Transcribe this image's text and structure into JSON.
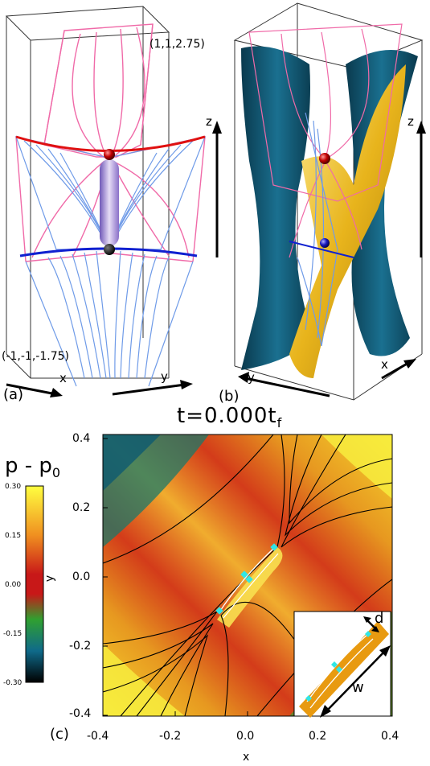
{
  "panel_a": {
    "label": "(a)",
    "corner_upper": "(1,1,2.75)",
    "corner_lower": "(-1,-1,-1.75)",
    "axis_x": "x",
    "axis_y": "y",
    "axis_z": "z"
  },
  "panel_b": {
    "label": "(b)",
    "axis_x": "x",
    "axis_y": "y",
    "axis_z": "z"
  },
  "panel_c": {
    "label": "(c)",
    "title": "t=0.000t",
    "title_sub": "f",
    "colorbar_title": "p - p",
    "colorbar_title_sub": "0",
    "colorbar_ticks": [
      "0.30",
      "0.15",
      "0.00",
      "-0.15",
      "-0.30"
    ],
    "xlabel": "x",
    "ylabel": "y",
    "xticks": [
      "-0.4",
      "-0.2",
      "0.0",
      "0.2",
      "0.4"
    ],
    "yticks": [
      "0.4",
      "0.2",
      "0.0",
      "-0.2",
      "-0.4"
    ],
    "inset_label_d": "d",
    "inset_label_w": "w"
  },
  "colors": {
    "field_pink": "#f06aa8",
    "field_blue": "#6f9be8",
    "spine_red": "#e01010",
    "spine_blue": "#1020d0",
    "surface_teal": "#0e4d66",
    "surface_gold": "#e8b41c",
    "marker_cyan": "#31e6e6"
  }
}
